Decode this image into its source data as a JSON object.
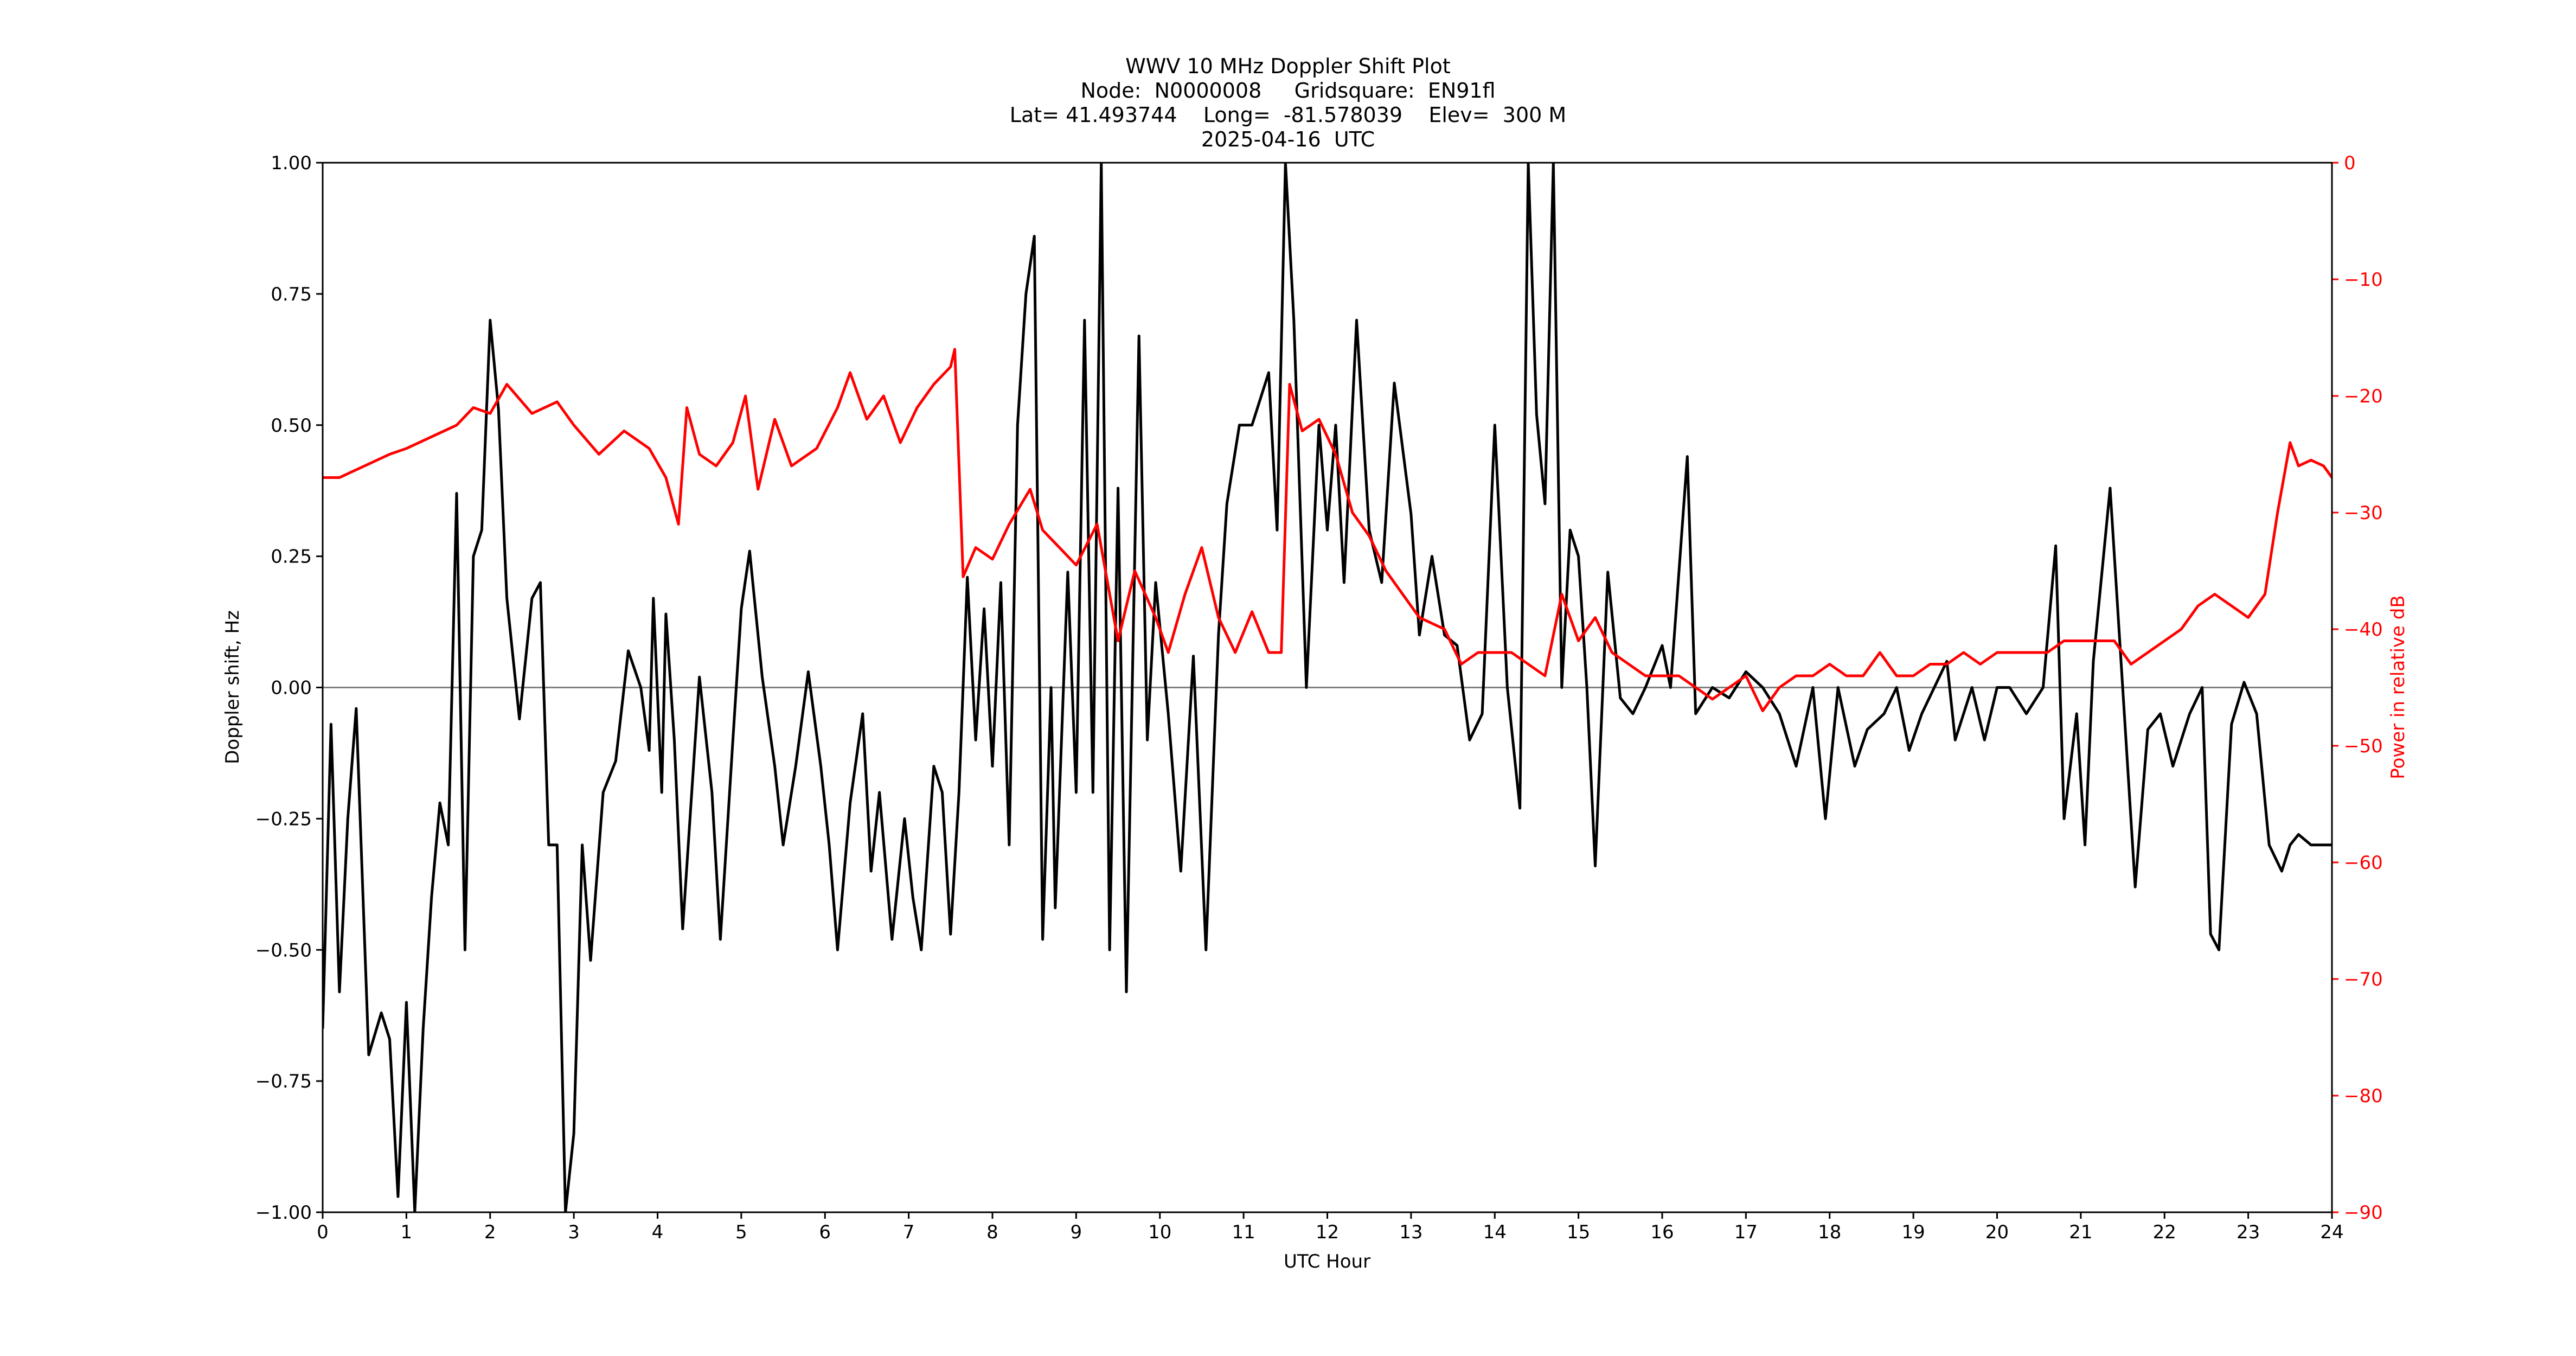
{
  "title_lines": [
    "WWV 10 MHz Doppler Shift Plot",
    "Node:  N0000008     Gridsquare:  EN91fl",
    "Lat= 41.493744    Long=  -81.578039    Elev=  300 M",
    "2025-04-16  UTC"
  ],
  "colors": {
    "doppler": "#000000",
    "power": "#ff0000",
    "zero_line": "#808080"
  },
  "chart_data": {
    "type": "line",
    "xlabel": "UTC Hour",
    "ylabel": "Doppler shift, Hz",
    "y2label": "Power in relative dB",
    "xlim": [
      0,
      24
    ],
    "ylim": [
      -1.0,
      1.0
    ],
    "y2lim": [
      -90,
      0
    ],
    "x_ticks": [
      "0",
      "1",
      "2",
      "3",
      "4",
      "5",
      "6",
      "7",
      "8",
      "9",
      "10",
      "11",
      "12",
      "13",
      "14",
      "15",
      "16",
      "17",
      "18",
      "19",
      "20",
      "21",
      "22",
      "23",
      "24"
    ],
    "y_ticks": [
      "−1.00",
      "−0.75",
      "−0.50",
      "−0.25",
      "0.00",
      "0.25",
      "0.50",
      "0.75",
      "1.00"
    ],
    "y2_ticks": [
      "−90",
      "−80",
      "−70",
      "−60",
      "−50",
      "−40",
      "−30",
      "−20",
      "−10",
      "0"
    ],
    "reference_line_y": 0.0,
    "grid": false,
    "series": [
      {
        "axis": "left",
        "points": [
          [
            0,
            -0.65
          ],
          [
            0.1,
            -0.07
          ],
          [
            0.2,
            -0.58
          ],
          [
            0.3,
            -0.25
          ],
          [
            0.4,
            -0.04
          ],
          [
            0.55,
            -0.7
          ],
          [
            0.7,
            -0.62
          ],
          [
            0.8,
            -0.67
          ],
          [
            0.9,
            -0.97
          ],
          [
            1.0,
            -0.6
          ],
          [
            1.1,
            -1.0
          ],
          [
            1.2,
            -0.65
          ],
          [
            1.3,
            -0.4
          ],
          [
            1.4,
            -0.22
          ],
          [
            1.5,
            -0.3
          ],
          [
            1.6,
            0.37
          ],
          [
            1.7,
            -0.5
          ],
          [
            1.8,
            0.25
          ],
          [
            1.9,
            0.3
          ],
          [
            2.0,
            0.7
          ],
          [
            2.1,
            0.53
          ],
          [
            2.2,
            0.17
          ],
          [
            2.35,
            -0.06
          ],
          [
            2.5,
            0.17
          ],
          [
            2.6,
            0.2
          ],
          [
            2.7,
            -0.3
          ],
          [
            2.8,
            -0.3
          ],
          [
            2.9,
            -1.0
          ],
          [
            3.0,
            -0.85
          ],
          [
            3.1,
            -0.3
          ],
          [
            3.2,
            -0.52
          ],
          [
            3.35,
            -0.2
          ],
          [
            3.5,
            -0.14
          ],
          [
            3.65,
            0.07
          ],
          [
            3.8,
            0.0
          ],
          [
            3.9,
            -0.12
          ],
          [
            3.95,
            0.17
          ],
          [
            4.05,
            -0.2
          ],
          [
            4.1,
            0.14
          ],
          [
            4.2,
            -0.1
          ],
          [
            4.3,
            -0.46
          ],
          [
            4.5,
            0.02
          ],
          [
            4.65,
            -0.2
          ],
          [
            4.75,
            -0.48
          ],
          [
            4.9,
            -0.1
          ],
          [
            5.0,
            0.15
          ],
          [
            5.1,
            0.26
          ],
          [
            5.25,
            0.02
          ],
          [
            5.4,
            -0.15
          ],
          [
            5.5,
            -0.3
          ],
          [
            5.65,
            -0.15
          ],
          [
            5.8,
            0.03
          ],
          [
            5.95,
            -0.15
          ],
          [
            6.05,
            -0.3
          ],
          [
            6.15,
            -0.5
          ],
          [
            6.3,
            -0.22
          ],
          [
            6.45,
            -0.05
          ],
          [
            6.55,
            -0.35
          ],
          [
            6.65,
            -0.2
          ],
          [
            6.8,
            -0.48
          ],
          [
            6.95,
            -0.25
          ],
          [
            7.05,
            -0.4
          ],
          [
            7.15,
            -0.5
          ],
          [
            7.3,
            -0.15
          ],
          [
            7.4,
            -0.2
          ],
          [
            7.5,
            -0.47
          ],
          [
            7.6,
            -0.2
          ],
          [
            7.7,
            0.21
          ],
          [
            7.8,
            -0.1
          ],
          [
            7.9,
            0.15
          ],
          [
            8.0,
            -0.15
          ],
          [
            8.1,
            0.2
          ],
          [
            8.2,
            -0.3
          ],
          [
            8.3,
            0.5
          ],
          [
            8.4,
            0.75
          ],
          [
            8.5,
            0.86
          ],
          [
            8.6,
            -0.48
          ],
          [
            8.7,
            0.0
          ],
          [
            8.75,
            -0.42
          ],
          [
            8.9,
            0.22
          ],
          [
            9.0,
            -0.2
          ],
          [
            9.1,
            0.7
          ],
          [
            9.2,
            -0.2
          ],
          [
            9.3,
            1.0
          ],
          [
            9.4,
            -0.5
          ],
          [
            9.5,
            0.38
          ],
          [
            9.6,
            -0.58
          ],
          [
            9.75,
            0.67
          ],
          [
            9.85,
            -0.1
          ],
          [
            9.95,
            0.2
          ],
          [
            10.1,
            -0.05
          ],
          [
            10.25,
            -0.35
          ],
          [
            10.4,
            0.06
          ],
          [
            10.55,
            -0.5
          ],
          [
            10.7,
            0.1
          ],
          [
            10.8,
            0.35
          ],
          [
            10.95,
            0.5
          ],
          [
            11.1,
            0.5
          ],
          [
            11.3,
            0.6
          ],
          [
            11.4,
            0.3
          ],
          [
            11.5,
            1.0
          ],
          [
            11.6,
            0.7
          ],
          [
            11.75,
            0.0
          ],
          [
            11.9,
            0.5
          ],
          [
            12.0,
            0.3
          ],
          [
            12.1,
            0.5
          ],
          [
            12.2,
            0.2
          ],
          [
            12.35,
            0.7
          ],
          [
            12.5,
            0.3
          ],
          [
            12.65,
            0.2
          ],
          [
            12.8,
            0.58
          ],
          [
            13.0,
            0.33
          ],
          [
            13.1,
            0.1
          ],
          [
            13.25,
            0.25
          ],
          [
            13.4,
            0.1
          ],
          [
            13.55,
            0.08
          ],
          [
            13.7,
            -0.1
          ],
          [
            13.85,
            -0.05
          ],
          [
            14.0,
            0.5
          ],
          [
            14.15,
            0.0
          ],
          [
            14.3,
            -0.23
          ],
          [
            14.4,
            1.0
          ],
          [
            14.5,
            0.52
          ],
          [
            14.6,
            0.35
          ],
          [
            14.7,
            1.0
          ],
          [
            14.8,
            0.0
          ],
          [
            14.9,
            0.3
          ],
          [
            15.0,
            0.25
          ],
          [
            15.1,
            0.0
          ],
          [
            15.2,
            -0.34
          ],
          [
            15.35,
            0.22
          ],
          [
            15.5,
            -0.02
          ],
          [
            15.65,
            -0.05
          ],
          [
            15.8,
            0.0
          ],
          [
            16.0,
            0.08
          ],
          [
            16.1,
            0.0
          ],
          [
            16.3,
            0.44
          ],
          [
            16.4,
            -0.05
          ],
          [
            16.6,
            0.0
          ],
          [
            16.8,
            -0.02
          ],
          [
            17.0,
            0.03
          ],
          [
            17.2,
            0.0
          ],
          [
            17.4,
            -0.05
          ],
          [
            17.6,
            -0.15
          ],
          [
            17.8,
            0.0
          ],
          [
            17.95,
            -0.25
          ],
          [
            18.1,
            0.0
          ],
          [
            18.3,
            -0.15
          ],
          [
            18.45,
            -0.08
          ],
          [
            18.65,
            -0.05
          ],
          [
            18.8,
            0.0
          ],
          [
            18.95,
            -0.12
          ],
          [
            19.1,
            -0.05
          ],
          [
            19.25,
            0.0
          ],
          [
            19.4,
            0.05
          ],
          [
            19.5,
            -0.1
          ],
          [
            19.7,
            0.0
          ],
          [
            19.85,
            -0.1
          ],
          [
            20.0,
            0.0
          ],
          [
            20.15,
            0.0
          ],
          [
            20.35,
            -0.05
          ],
          [
            20.55,
            0.0
          ],
          [
            20.7,
            0.27
          ],
          [
            20.8,
            -0.25
          ],
          [
            20.95,
            -0.05
          ],
          [
            21.05,
            -0.3
          ],
          [
            21.15,
            0.05
          ],
          [
            21.35,
            0.38
          ],
          [
            21.5,
            0.0
          ],
          [
            21.65,
            -0.38
          ],
          [
            21.8,
            -0.08
          ],
          [
            21.95,
            -0.05
          ],
          [
            22.1,
            -0.15
          ],
          [
            22.3,
            -0.05
          ],
          [
            22.45,
            0.0
          ],
          [
            22.55,
            -0.47
          ],
          [
            22.65,
            -0.5
          ],
          [
            22.8,
            -0.07
          ],
          [
            22.95,
            0.01
          ],
          [
            23.1,
            -0.05
          ],
          [
            23.25,
            -0.3
          ],
          [
            23.4,
            -0.35
          ],
          [
            23.5,
            -0.3
          ],
          [
            23.6,
            -0.28
          ],
          [
            23.75,
            -0.3
          ],
          [
            24.0,
            -0.3
          ]
        ]
      },
      {
        "axis": "right",
        "points": [
          [
            0,
            -27
          ],
          [
            0.2,
            -27
          ],
          [
            0.5,
            -26
          ],
          [
            0.8,
            -25
          ],
          [
            1.0,
            -24.5
          ],
          [
            1.3,
            -23.5
          ],
          [
            1.6,
            -22.5
          ],
          [
            1.8,
            -21
          ],
          [
            2.0,
            -21.5
          ],
          [
            2.2,
            -19
          ],
          [
            2.5,
            -21.5
          ],
          [
            2.8,
            -20.5
          ],
          [
            3.0,
            -22.5
          ],
          [
            3.3,
            -25
          ],
          [
            3.6,
            -23
          ],
          [
            3.9,
            -24.5
          ],
          [
            4.1,
            -27
          ],
          [
            4.25,
            -31
          ],
          [
            4.35,
            -21
          ],
          [
            4.5,
            -25
          ],
          [
            4.7,
            -26
          ],
          [
            4.9,
            -24
          ],
          [
            5.05,
            -20
          ],
          [
            5.2,
            -28
          ],
          [
            5.4,
            -22
          ],
          [
            5.6,
            -26
          ],
          [
            5.9,
            -24.5
          ],
          [
            6.15,
            -21
          ],
          [
            6.3,
            -18
          ],
          [
            6.5,
            -22
          ],
          [
            6.7,
            -20
          ],
          [
            6.9,
            -24
          ],
          [
            7.1,
            -21
          ],
          [
            7.3,
            -19
          ],
          [
            7.5,
            -17.5
          ],
          [
            7.55,
            -16
          ],
          [
            7.65,
            -35.5
          ],
          [
            7.8,
            -33
          ],
          [
            8.0,
            -34
          ],
          [
            8.2,
            -31
          ],
          [
            8.45,
            -28
          ],
          [
            8.6,
            -31.5
          ],
          [
            8.8,
            -33
          ],
          [
            9.0,
            -34.5
          ],
          [
            9.25,
            -31
          ],
          [
            9.5,
            -41
          ],
          [
            9.7,
            -35
          ],
          [
            9.95,
            -39
          ],
          [
            10.1,
            -42
          ],
          [
            10.3,
            -37
          ],
          [
            10.5,
            -33
          ],
          [
            10.7,
            -39
          ],
          [
            10.9,
            -42
          ],
          [
            11.1,
            -38.5
          ],
          [
            11.3,
            -42
          ],
          [
            11.45,
            -42
          ],
          [
            11.55,
            -19
          ],
          [
            11.7,
            -23
          ],
          [
            11.9,
            -22
          ],
          [
            12.1,
            -25
          ],
          [
            12.3,
            -30
          ],
          [
            12.5,
            -32
          ],
          [
            12.7,
            -35
          ],
          [
            12.9,
            -37
          ],
          [
            13.1,
            -39
          ],
          [
            13.4,
            -40
          ],
          [
            13.6,
            -43
          ],
          [
            13.8,
            -42
          ],
          [
            14.0,
            -42
          ],
          [
            14.2,
            -42
          ],
          [
            14.4,
            -43
          ],
          [
            14.6,
            -44
          ],
          [
            14.8,
            -37
          ],
          [
            15.0,
            -41
          ],
          [
            15.2,
            -39
          ],
          [
            15.4,
            -42
          ],
          [
            15.6,
            -43
          ],
          [
            15.8,
            -44
          ],
          [
            16.0,
            -44
          ],
          [
            16.2,
            -44
          ],
          [
            16.4,
            -45
          ],
          [
            16.6,
            -46
          ],
          [
            16.8,
            -45
          ],
          [
            17.0,
            -44
          ],
          [
            17.2,
            -47
          ],
          [
            17.4,
            -45
          ],
          [
            17.6,
            -44
          ],
          [
            17.8,
            -44
          ],
          [
            18.0,
            -43
          ],
          [
            18.2,
            -44
          ],
          [
            18.4,
            -44
          ],
          [
            18.6,
            -42
          ],
          [
            18.8,
            -44
          ],
          [
            19.0,
            -44
          ],
          [
            19.2,
            -43
          ],
          [
            19.4,
            -43
          ],
          [
            19.6,
            -42
          ],
          [
            19.8,
            -43
          ],
          [
            20.0,
            -42
          ],
          [
            20.2,
            -42
          ],
          [
            20.4,
            -42
          ],
          [
            20.6,
            -42
          ],
          [
            20.8,
            -41
          ],
          [
            21.0,
            -41
          ],
          [
            21.2,
            -41
          ],
          [
            21.4,
            -41
          ],
          [
            21.6,
            -43
          ],
          [
            21.8,
            -42
          ],
          [
            22.0,
            -41
          ],
          [
            22.2,
            -40
          ],
          [
            22.4,
            -38
          ],
          [
            22.6,
            -37
          ],
          [
            22.8,
            -38
          ],
          [
            23.0,
            -39
          ],
          [
            23.2,
            -37
          ],
          [
            23.35,
            -30
          ],
          [
            23.5,
            -24
          ],
          [
            23.6,
            -26
          ],
          [
            23.75,
            -25.5
          ],
          [
            23.9,
            -26
          ],
          [
            24.0,
            -27
          ]
        ]
      }
    ]
  }
}
